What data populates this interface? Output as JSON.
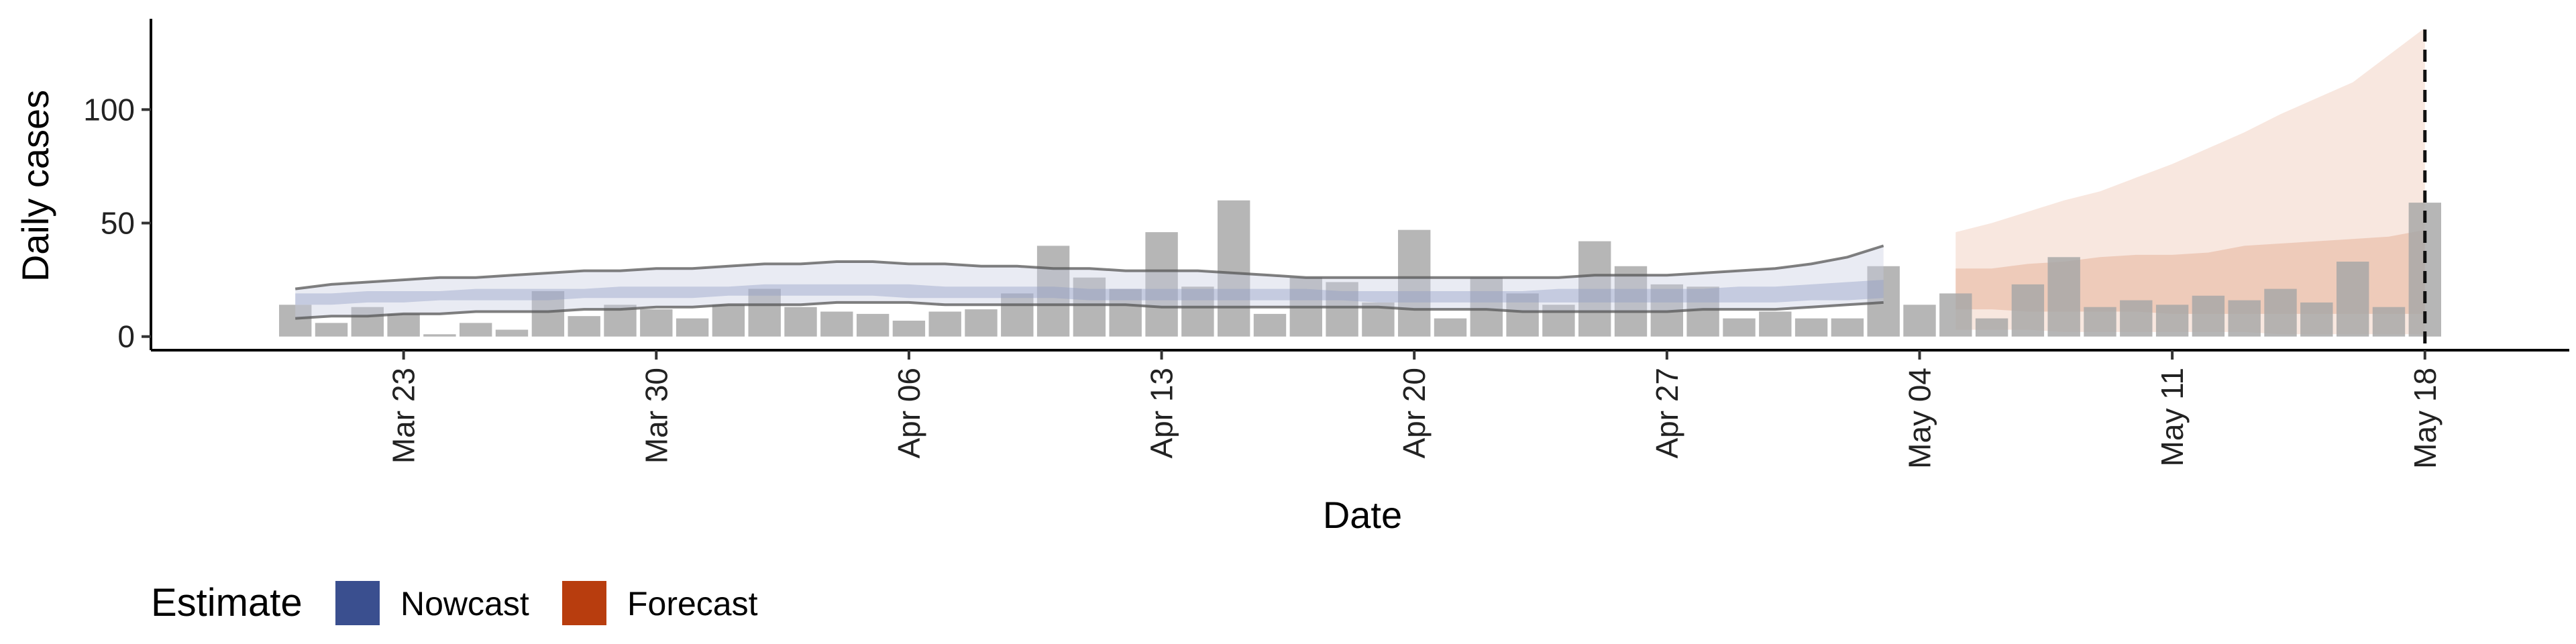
{
  "chart_data": {
    "type": "bar",
    "xlabel": "Date",
    "ylabel": "Daily cases",
    "ylim": [
      -6,
      140
    ],
    "yticks": [
      0,
      50,
      100
    ],
    "xlim": [
      "2020-03-16",
      "2020-05-22"
    ],
    "xticks": [
      {
        "date": "2020-03-23",
        "label": "Mar 23"
      },
      {
        "date": "2020-03-30",
        "label": "Mar 30"
      },
      {
        "date": "2020-04-06",
        "label": "Apr 06"
      },
      {
        "date": "2020-04-13",
        "label": "Apr 13"
      },
      {
        "date": "2020-04-20",
        "label": "Apr 20"
      },
      {
        "date": "2020-04-27",
        "label": "Apr 27"
      },
      {
        "date": "2020-05-04",
        "label": "May 04"
      },
      {
        "date": "2020-05-11",
        "label": "May 11"
      },
      {
        "date": "2020-05-18",
        "label": "May 18"
      }
    ],
    "grid": false,
    "bars": {
      "start_date": "2020-03-20",
      "color": "#a6a6a6",
      "values": [
        14,
        6,
        13,
        10,
        1,
        6,
        3,
        20,
        9,
        14,
        12,
        8,
        14,
        21,
        13,
        11,
        10,
        7,
        11,
        12,
        19,
        40,
        26,
        21,
        46,
        22,
        60,
        10,
        26,
        24,
        15,
        47,
        8,
        26,
        19,
        14,
        42,
        31,
        23,
        22,
        8,
        11,
        8,
        8,
        31,
        14,
        19,
        8,
        23,
        35,
        13,
        16,
        14,
        18,
        16,
        21,
        15,
        33,
        13,
        59
      ]
    },
    "series": [
      {
        "name": "Nowcast",
        "color": "#3a4f8f",
        "start_date": "2020-03-20",
        "inner_band": {
          "lower": [
            14,
            14,
            15,
            15,
            16,
            16,
            16,
            16,
            17,
            17,
            17,
            17,
            18,
            18,
            18,
            18,
            18,
            17,
            17,
            17,
            17,
            17,
            16,
            16,
            16,
            16,
            16,
            16,
            16,
            16,
            15,
            15,
            15,
            15,
            15,
            15,
            15,
            15,
            15,
            15,
            15,
            15,
            16,
            16,
            17
          ],
          "upper": [
            19,
            19,
            20,
            20,
            20,
            21,
            21,
            21,
            21,
            22,
            22,
            22,
            22,
            23,
            23,
            23,
            23,
            23,
            22,
            22,
            22,
            22,
            21,
            21,
            21,
            21,
            21,
            21,
            21,
            20,
            20,
            20,
            20,
            20,
            20,
            21,
            21,
            21,
            21,
            21,
            22,
            22,
            23,
            24,
            25
          ]
        },
        "outer_band": {
          "lower": [
            8,
            9,
            9,
            10,
            10,
            11,
            11,
            11,
            12,
            12,
            13,
            13,
            14,
            14,
            14,
            15,
            15,
            15,
            14,
            14,
            14,
            14,
            14,
            14,
            13,
            13,
            13,
            13,
            13,
            13,
            13,
            12,
            12,
            12,
            11,
            11,
            11,
            11,
            11,
            12,
            12,
            12,
            13,
            14,
            15
          ],
          "upper": [
            21,
            23,
            24,
            25,
            26,
            26,
            27,
            28,
            29,
            29,
            30,
            30,
            31,
            32,
            32,
            33,
            33,
            32,
            32,
            31,
            31,
            30,
            30,
            29,
            29,
            29,
            28,
            27,
            26,
            26,
            26,
            26,
            26,
            26,
            26,
            26,
            27,
            27,
            27,
            28,
            29,
            30,
            32,
            35,
            40
          ]
        }
      },
      {
        "name": "Forecast",
        "color": "#b83d0e",
        "start_date": "2020-05-05",
        "inner_band": {
          "lower": [
            12,
            12,
            11,
            11,
            11,
            11,
            10,
            10,
            10,
            10,
            10,
            10,
            10,
            10
          ],
          "upper": [
            30,
            30,
            32,
            33,
            35,
            36,
            36,
            37,
            40,
            41,
            42,
            43,
            44,
            47
          ]
        },
        "outer_band": {
          "lower": [
            3,
            3,
            3,
            2,
            2,
            2,
            2,
            2,
            2,
            1,
            1,
            1,
            1,
            1
          ],
          "upper": [
            46,
            50,
            55,
            60,
            64,
            70,
            76,
            83,
            90,
            98,
            105,
            112,
            124,
            136
          ]
        }
      }
    ],
    "reference_line": {
      "date": "2020-05-18",
      "style": "dashed"
    },
    "legend": {
      "title": "Estimate",
      "position": "bottom-left",
      "entries": [
        {
          "label": "Nowcast",
          "color": "#3a4f8f"
        },
        {
          "label": "Forecast",
          "color": "#b83d0e"
        }
      ]
    }
  }
}
